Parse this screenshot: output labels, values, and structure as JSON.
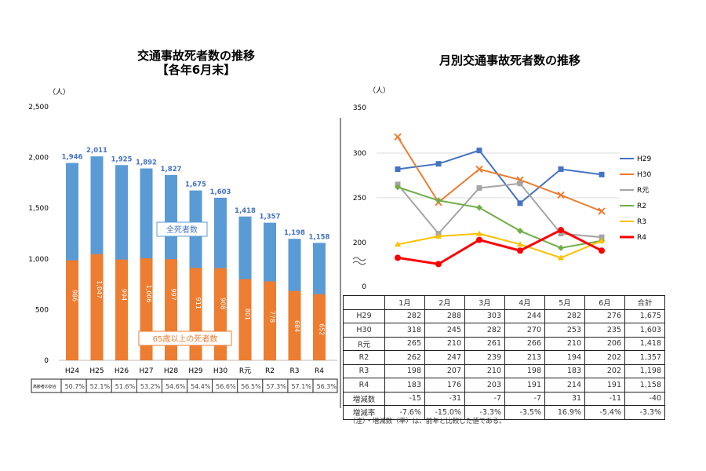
{
  "left_title": [
    "交通事故死者数の推移",
    "【各年6月末】"
  ],
  "right_title": "月別交通事故死者数の推移",
  "note": "（注）・増減数（率）は、前年と比較した値である。",
  "chart_data": [
    {
      "type": "bar",
      "title": "交通事故死者数の推移 【各年6月末】",
      "ylabel": "（人）",
      "ylim": [
        0,
        2500
      ],
      "yticks": [
        "0",
        "500",
        "1,000",
        "1,500",
        "2,000",
        "2,500"
      ],
      "categories": [
        "H24",
        "H25",
        "H26",
        "H27",
        "H28",
        "H29",
        "H30",
        "R元",
        "R2",
        "R3",
        "R4"
      ],
      "series": [
        {
          "name": "全死者数",
          "color": "#5b9bd5",
          "values": [
            1946,
            2011,
            1925,
            1892,
            1827,
            1675,
            1603,
            1418,
            1357,
            1198,
            1158
          ],
          "labels": [
            "1,946",
            "2,011",
            "1,925",
            "1,892",
            "1,827",
            "1,675",
            "1,603",
            "1,418",
            "1,357",
            "1,198",
            "1,158"
          ]
        },
        {
          "name": "65歳以上の死者数",
          "color": "#ed7d31",
          "values": [
            986,
            1047,
            994,
            1006,
            997,
            911,
            908,
            801,
            778,
            684,
            652
          ],
          "labels": [
            "986",
            "1,047",
            "994",
            "1,006",
            "997",
            "911",
            "908",
            "801",
            "778",
            "684",
            "652"
          ]
        }
      ],
      "ratio_row": {
        "label": "高齢者の割合",
        "values": [
          "50.7%",
          "52.1%",
          "51.6%",
          "53.2%",
          "54.6%",
          "54.4%",
          "56.6%",
          "56.5%",
          "57.3%",
          "57.1%",
          "56.3%"
        ]
      }
    },
    {
      "type": "line",
      "title": "月別交通事故死者数の推移",
      "ylabel": "（人）",
      "ylim": [
        0,
        350
      ],
      "axis_break": true,
      "yticks": [
        "0",
        "200",
        "250",
        "300",
        "350"
      ],
      "categories": [
        "1月",
        "2月",
        "3月",
        "4月",
        "5月",
        "6月"
      ],
      "total_label": "合計",
      "series": [
        {
          "name": "H29",
          "color": "#4472c4",
          "marker": "square",
          "values": [
            282,
            288,
            303,
            244,
            282,
            276
          ],
          "total": "1,675"
        },
        {
          "name": "H30",
          "color": "#ed7d31",
          "marker": "x",
          "values": [
            318,
            245,
            282,
            270,
            253,
            235
          ],
          "total": "1,603"
        },
        {
          "name": "R元",
          "color": "#a5a5a5",
          "marker": "square",
          "values": [
            265,
            210,
            261,
            266,
            210,
            206
          ],
          "total": "1,418"
        },
        {
          "name": "R2",
          "color": "#70ad47",
          "marker": "diamond",
          "values": [
            262,
            247,
            239,
            213,
            194,
            202
          ],
          "total": "1,357"
        },
        {
          "name": "R3",
          "color": "#ffc000",
          "marker": "triangle",
          "values": [
            198,
            207,
            210,
            198,
            183,
            202
          ],
          "total": "1,198"
        },
        {
          "name": "R4",
          "color": "#ff0000",
          "marker": "circle",
          "values": [
            183,
            176,
            203,
            191,
            214,
            191
          ],
          "total": "1,158"
        }
      ],
      "extra_rows": [
        {
          "label": "増減数",
          "values": [
            "-15",
            "-31",
            "-7",
            "-7",
            "31",
            "-11",
            "-40"
          ]
        },
        {
          "label": "増減率",
          "values": [
            "-7.6%",
            "-15.0%",
            "-3.3%",
            "-3.5%",
            "16.9%",
            "-5.4%",
            "-3.3%"
          ]
        }
      ]
    }
  ]
}
